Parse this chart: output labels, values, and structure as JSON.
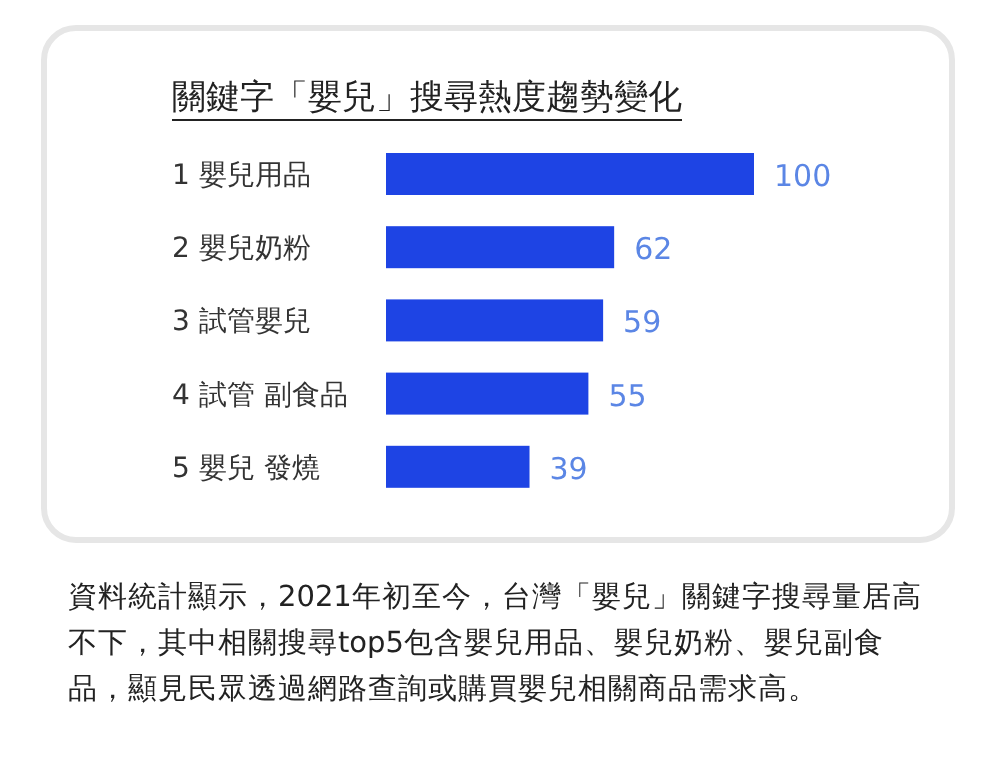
{
  "chart_data": {
    "type": "bar",
    "orientation": "horizontal",
    "title": "關鍵字「嬰兒」搜尋熱度趨勢變化",
    "categories": [
      "1 嬰兒用品",
      "2 嬰兒奶粉",
      "3 試管嬰兒",
      "4 試管 副食品",
      "5 嬰兒 發燒"
    ],
    "values": [
      100,
      62,
      59,
      55,
      39
    ],
    "color": "#1e44e4",
    "data_labels": true,
    "annotations": [
      "資料統計顯示，2021年初至今，台灣「嬰兒」關鍵字搜尋量居高不下，其中相關搜尋top5包含嬰兒用品、嬰兒奶粉、嬰兒副食品，顯見民眾透過網路查詢或購買嬰兒相關商品需求高。"
    ]
  }
}
